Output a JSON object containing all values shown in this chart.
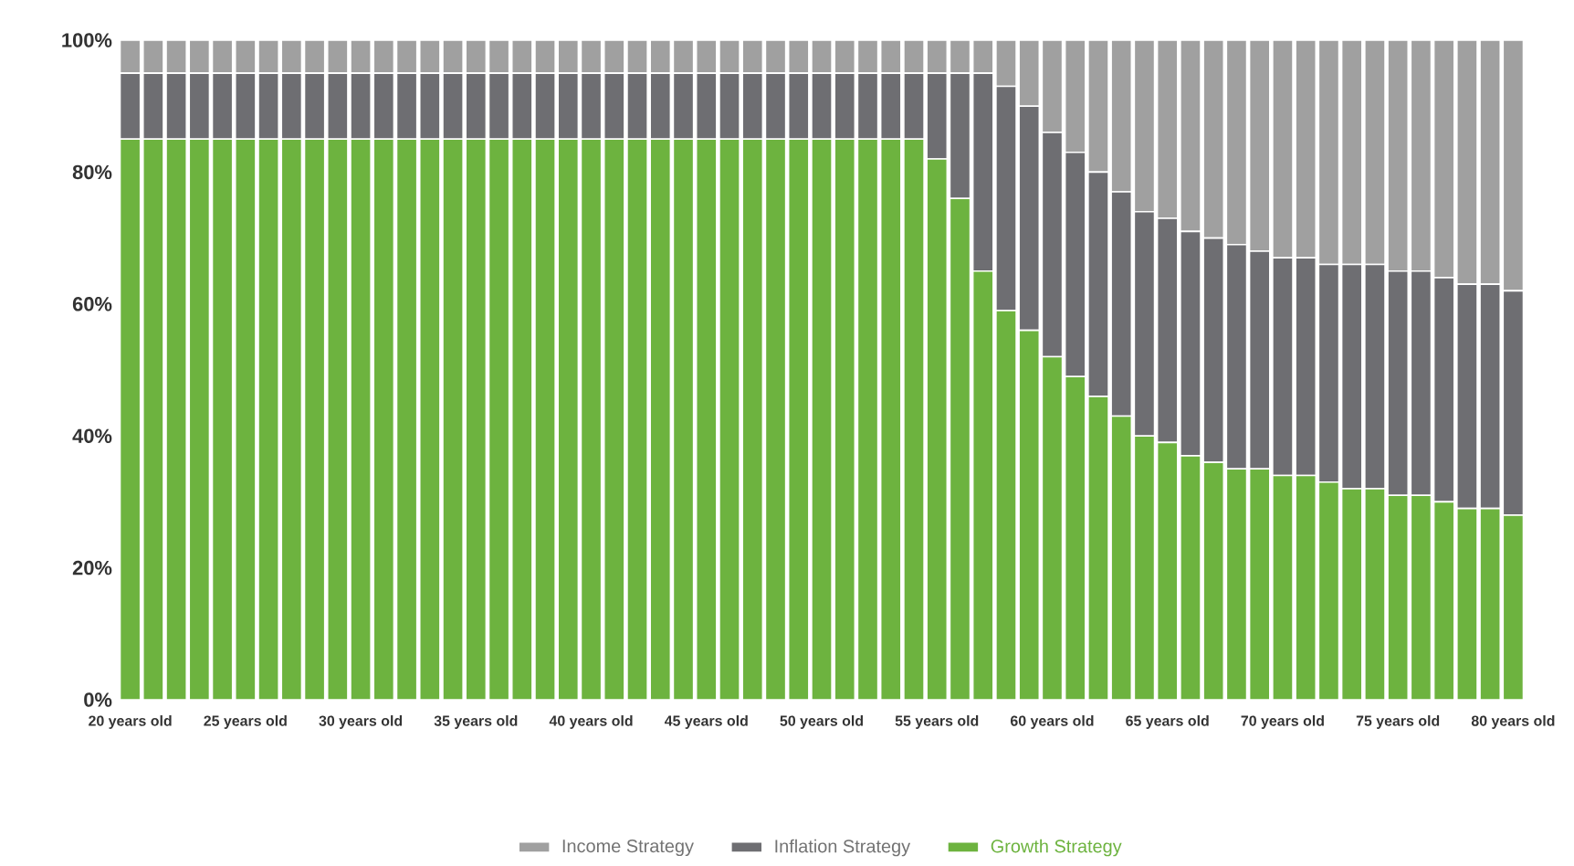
{
  "chart_data": {
    "type": "bar",
    "stacked": true,
    "categories": [
      "20 years old",
      null,
      null,
      null,
      null,
      "25 years old",
      null,
      null,
      null,
      null,
      "30 years old",
      null,
      null,
      null,
      null,
      "35 years old",
      null,
      null,
      null,
      null,
      "40 years old",
      null,
      null,
      null,
      null,
      "45 years old",
      null,
      null,
      null,
      null,
      "50 years old",
      null,
      null,
      null,
      null,
      "55 years old",
      null,
      null,
      null,
      null,
      "60 years old",
      null,
      null,
      null,
      null,
      "65 years old",
      null,
      null,
      null,
      null,
      "70 years old",
      null,
      null,
      null,
      null,
      "75 years old",
      null,
      null,
      null,
      null,
      "80 years old"
    ],
    "series": [
      {
        "name": "Growth Strategy",
        "color": "#6db33f",
        "values": [
          85,
          85,
          85,
          85,
          85,
          85,
          85,
          85,
          85,
          85,
          85,
          85,
          85,
          85,
          85,
          85,
          85,
          85,
          85,
          85,
          85,
          85,
          85,
          85,
          85,
          85,
          85,
          85,
          85,
          85,
          85,
          85,
          85,
          85,
          85,
          82,
          76,
          65,
          59,
          56,
          52,
          49,
          46,
          43,
          40,
          39,
          37,
          36,
          35,
          35,
          34,
          34,
          33,
          32,
          32,
          31,
          31,
          30,
          29,
          29,
          28
        ]
      },
      {
        "name": "Inflation Strategy",
        "color": "#6e6e72",
        "values": [
          10,
          10,
          10,
          10,
          10,
          10,
          10,
          10,
          10,
          10,
          10,
          10,
          10,
          10,
          10,
          10,
          10,
          10,
          10,
          10,
          10,
          10,
          10,
          10,
          10,
          10,
          10,
          10,
          10,
          10,
          10,
          10,
          10,
          10,
          10,
          13,
          19,
          30,
          34,
          34,
          34,
          34,
          34,
          34,
          34,
          34,
          34,
          34,
          34,
          33,
          33,
          33,
          33,
          34,
          34,
          34,
          34,
          34,
          34,
          34,
          34
        ]
      },
      {
        "name": "Income Strategy",
        "color": "#a0a0a0",
        "values": [
          5,
          5,
          5,
          5,
          5,
          5,
          5,
          5,
          5,
          5,
          5,
          5,
          5,
          5,
          5,
          5,
          5,
          5,
          5,
          5,
          5,
          5,
          5,
          5,
          5,
          5,
          5,
          5,
          5,
          5,
          5,
          5,
          5,
          5,
          5,
          5,
          5,
          5,
          7,
          10,
          14,
          17,
          20,
          23,
          26,
          27,
          29,
          30,
          31,
          32,
          33,
          33,
          34,
          34,
          34,
          35,
          35,
          36,
          37,
          37,
          38
        ]
      }
    ],
    "ylim": [
      0,
      100
    ],
    "yticks": [
      {
        "value": 0,
        "label": "0%"
      },
      {
        "value": 20,
        "label": "20%"
      },
      {
        "value": 40,
        "label": "40%"
      },
      {
        "value": 60,
        "label": "60%"
      },
      {
        "value": 80,
        "label": "80%"
      },
      {
        "value": 100,
        "label": "100%"
      }
    ],
    "grid": false,
    "legend": "bottom"
  }
}
